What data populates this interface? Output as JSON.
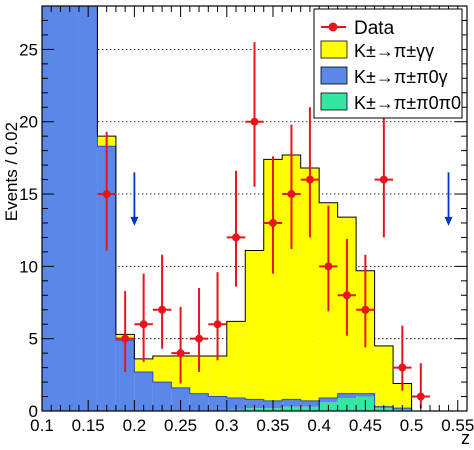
{
  "chart_data": {
    "type": "bar",
    "title": "",
    "xlabel": "z",
    "ylabel": "Events / 0.02",
    "xlim": [
      0.1,
      0.56
    ],
    "ylim": [
      0,
      28
    ],
    "xticks": [
      "0.1",
      "0.15",
      "0.2",
      "0.25",
      "0.3",
      "0.35",
      "0.4",
      "0.45",
      "0.5",
      "0.55"
    ],
    "xtick_values": [
      0.1,
      0.15,
      0.2,
      0.25,
      0.3,
      0.35,
      0.4,
      0.45,
      0.5,
      0.55
    ],
    "yticks": [
      "0",
      "5",
      "10",
      "15",
      "20",
      "25"
    ],
    "ytick_values": [
      0,
      5,
      10,
      15,
      20,
      25
    ],
    "grid": "horizontal dotted",
    "legend_position": "top-right",
    "stack_bins": [
      0.1,
      0.12,
      0.14,
      0.16,
      0.18,
      0.2,
      0.22,
      0.24,
      0.26,
      0.28,
      0.3,
      0.32,
      0.34,
      0.36,
      0.38,
      0.4,
      0.42,
      0.44,
      0.46,
      0.48,
      0.5,
      0.52
    ],
    "series": [
      {
        "name": "K±→π±π0π0",
        "kind": "histogram-stacked",
        "color": "#33e6a1",
        "values": [
          0,
          0,
          0,
          0,
          0,
          0,
          0,
          0,
          0,
          0,
          0.1,
          0.2,
          0.2,
          0.3,
          0.3,
          0.6,
          0.9,
          1.0,
          0.2,
          0.1,
          0
        ]
      },
      {
        "name": "K±→π±π0γ",
        "kind": "histogram-stacked",
        "color": "#5a87e8",
        "values": [
          28.5,
          28.5,
          28.5,
          18.3,
          4.9,
          2.7,
          2.0,
          1.6,
          1.2,
          1.0,
          0.8,
          0.6,
          0.5,
          0.5,
          0.4,
          0.3,
          0.3,
          0.2,
          0.1,
          0.1,
          0
        ]
      },
      {
        "name": "K±→π±γγ",
        "kind": "histogram-stacked",
        "color": "#ffff00",
        "values": [
          0,
          0,
          0,
          0.7,
          0.4,
          0.9,
          1.8,
          2.2,
          2.6,
          2.8,
          5.3,
          10.3,
          16.7,
          16.9,
          16.1,
          13.5,
          12.2,
          8.5,
          4.2,
          1.7,
          0
        ]
      },
      {
        "name": "Data",
        "kind": "points",
        "color": "#e8141c",
        "x": [
          0.17,
          0.19,
          0.21,
          0.23,
          0.25,
          0.27,
          0.29,
          0.31,
          0.33,
          0.35,
          0.37,
          0.39,
          0.41,
          0.43,
          0.45,
          0.47,
          0.49,
          0.51
        ],
        "y": [
          15,
          5,
          6,
          7,
          4,
          5,
          6,
          12,
          20,
          13,
          15,
          16,
          10,
          8,
          7,
          16,
          3,
          1
        ],
        "err_up": [
          4.3,
          3.3,
          3.5,
          3.8,
          3.2,
          3.5,
          3.6,
          4.6,
          5.5,
          4.6,
          4.8,
          5.0,
          4.2,
          3.9,
          3.8,
          5.0,
          2.9,
          2.3
        ],
        "err_down": [
          3.9,
          2.3,
          2.6,
          2.7,
          2.1,
          2.3,
          2.5,
          3.4,
          4.5,
          3.5,
          3.8,
          4.0,
          3.1,
          2.8,
          2.6,
          4.0,
          1.6,
          0.8
        ]
      }
    ],
    "annotations": [
      {
        "kind": "arrow-down",
        "x": 0.2,
        "y_top": 16.5,
        "y_bottom": 12.8,
        "color": "#0033cc"
      },
      {
        "kind": "arrow-down",
        "x": 0.54,
        "y_top": 16.5,
        "y_bottom": 12.8,
        "color": "#0033cc"
      }
    ]
  },
  "legend": {
    "data_label": "Data",
    "gg_label": "K±→π±γγ",
    "pi0g_label": "K±→π±π0γ",
    "pi0pi0_label": "K±→π±π0π0"
  }
}
